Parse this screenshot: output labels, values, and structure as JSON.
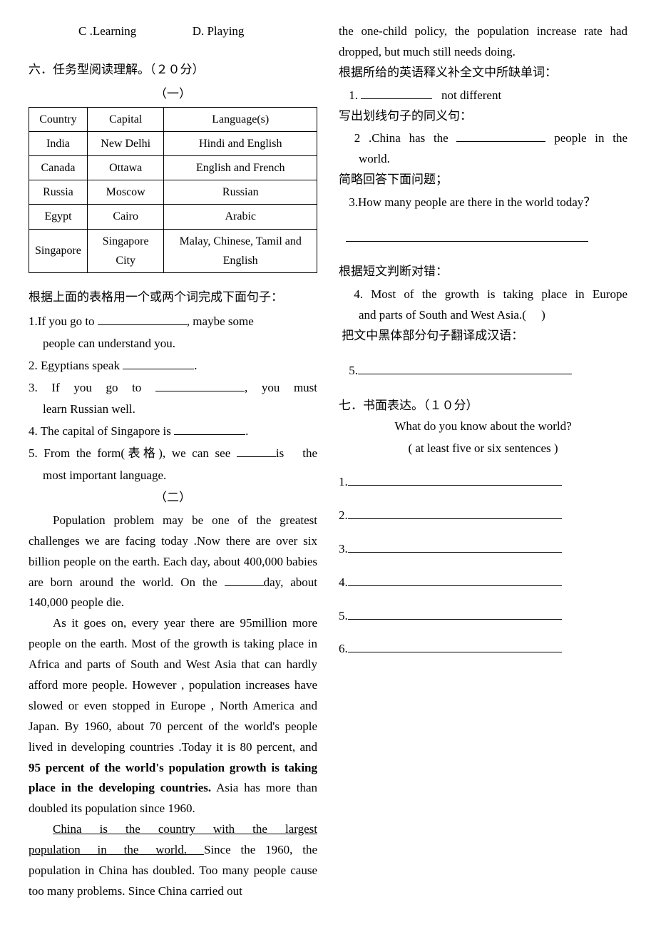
{
  "left": {
    "choices": {
      "c": "C .Learning",
      "d": "D. Playing"
    },
    "section6_title": "六．任务型阅读理解。（２０分）",
    "part1_label": "（一）",
    "table": {
      "headers": [
        "Country",
        "Capital",
        "Language(s)"
      ],
      "rows": [
        [
          "India",
          "New Delhi",
          "Hindi and English"
        ],
        [
          "Canada",
          "Ottawa",
          "English and French"
        ],
        [
          "Russia",
          "Moscow",
          "Russian"
        ],
        [
          "Egypt",
          "Cairo",
          "Arabic"
        ],
        [
          "Singapore",
          "Singapore City",
          "Malay, Chinese, Tamil and English"
        ]
      ]
    },
    "q1_instruction": "根据上面的表格用一个或两个词完成下面句子：",
    "q1_1a": "1.If you go to ",
    "q1_1b": ", maybe some",
    "q1_1c": "people can understand you.",
    "q1_2a": "2. Egyptians speak ",
    "q1_2b": ".",
    "q1_3a": "3. If you go to ",
    "q1_3b": ", you must",
    "q1_3c": "learn Russian well.",
    "q1_4a": "4. The capital of Singapore is ",
    "q1_4b": ".",
    "q1_5a": "5. From the form(表格), we can see ",
    "q1_5b": "is   the",
    "q1_5c": "most important language.",
    "part2_label": "（二）",
    "passage": {
      "p1a": "Population problem may be one of the greatest challenges we are facing today .Now there are over six billion people on the earth. Each day, about 400,000 babies are born around the world. On the ",
      "p1b": "day, about 140,000 people die.",
      "p2a": "As it goes on, every year there are 95million more people on the earth. Most of the growth is taking place in Africa and parts of South and West Asia that can hardly afford more people. However , population increases have slowed or even stopped in Europe , North America and Japan. By 1960, about 70 percent of the world's people lived in developing countries .Today it is 80 percent, and ",
      "p2_bold": "95 percent of the world's population growth is taking place in the developing countries.",
      "p2c": " Asia has more than doubled its population since 1960.",
      "p3_underlined": "China is the country with the largest population in the world. ",
      "p3b": "Since the 1960, the population in China has doubled. Too many people cause too many problems. Since China carried out"
    }
  },
  "right": {
    "cont1": "the one-child policy, the population increase rate had dropped, but much still needs doing.",
    "inst1": "根据所给的英语释义补全文中所缺单词：",
    "q1a": " 1. ",
    "q1b": "   not different",
    "inst2": "写出划线句子的同义句：",
    "q2a": " 2 .China has the ",
    "q2b": " people in the",
    "q2c": "world.",
    "inst3": "简略回答下面问题；",
    "q3": " 3.How many people are there in the world today？",
    "inst4": "根据短文判断对错：",
    "q4a": " 4. Most of the growth is taking place in Europe",
    "q4b": "and parts of South and West Asia.(     )",
    "inst5": " 把文中黑体部分句子翻译成汉语：",
    "q5": " 5.",
    "section7_title": "七．书面表达。（１０分）",
    "writing_prompt1": "What do you know about the world?",
    "writing_prompt2": "( at least five or six sentences )",
    "lines": [
      "1.",
      "2.",
      "3.",
      "4.",
      "5.",
      "6."
    ]
  }
}
